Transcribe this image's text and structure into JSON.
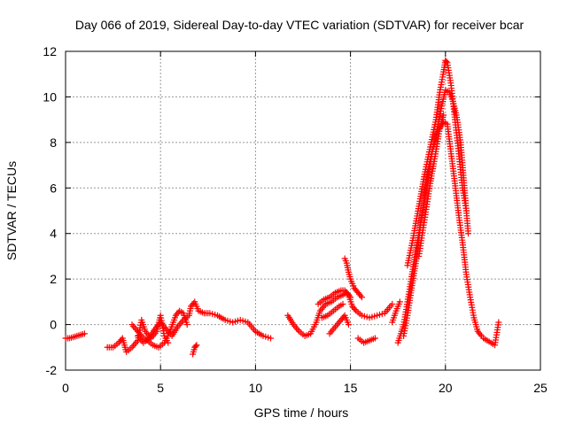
{
  "chart_data": {
    "type": "scatter",
    "title": "Day 066 of 2019, Sidereal Day-to-day VTEC variation (SDTVAR) for receiver bcar",
    "xlabel": "GPS time / hours",
    "ylabel": "SDTVAR / TECUs",
    "xlim": [
      0,
      25
    ],
    "ylim": [
      -2,
      12
    ],
    "xticks": [
      0,
      5,
      10,
      15,
      20,
      25
    ],
    "yticks": [
      -2,
      0,
      2,
      4,
      6,
      8,
      10,
      12
    ],
    "grid": true,
    "marker": "+",
    "series": [
      {
        "name": "SDTVAR",
        "color": "#ff0000",
        "points": [
          [
            0.0,
            -0.6
          ],
          [
            0.2,
            -0.6
          ],
          [
            0.4,
            -0.55
          ],
          [
            0.6,
            -0.5
          ],
          [
            0.8,
            -0.45
          ],
          [
            1.0,
            -0.4
          ],
          [
            2.2,
            -1.0
          ],
          [
            2.5,
            -1.0
          ],
          [
            2.8,
            -0.8
          ],
          [
            3.0,
            -0.6
          ],
          [
            3.2,
            -1.2
          ],
          [
            3.5,
            -1.0
          ],
          [
            3.8,
            -0.7
          ],
          [
            4.0,
            0.2
          ],
          [
            4.2,
            -0.3
          ],
          [
            4.5,
            -0.6
          ],
          [
            4.8,
            -0.3
          ],
          [
            5.0,
            0.4
          ],
          [
            5.2,
            -0.5
          ],
          [
            5.4,
            -0.8
          ],
          [
            3.5,
            0.0
          ],
          [
            3.8,
            -0.3
          ],
          [
            4.0,
            -0.5
          ],
          [
            4.3,
            -0.7
          ],
          [
            4.6,
            -0.9
          ],
          [
            4.9,
            -1.0
          ],
          [
            5.2,
            -0.8
          ],
          [
            5.5,
            -0.3
          ],
          [
            5.8,
            0.4
          ],
          [
            6.0,
            0.6
          ],
          [
            6.2,
            0.5
          ],
          [
            6.4,
            0.0
          ],
          [
            3.8,
            -0.5
          ],
          [
            4.1,
            -0.8
          ],
          [
            4.4,
            -0.6
          ],
          [
            4.7,
            -0.2
          ],
          [
            5.0,
            0.1
          ],
          [
            5.3,
            -0.2
          ],
          [
            5.6,
            -0.5
          ],
          [
            5.9,
            -0.1
          ],
          [
            6.2,
            0.2
          ],
          [
            6.5,
            0.4
          ],
          [
            6.6,
            0.8
          ],
          [
            6.8,
            1.0
          ],
          [
            7.0,
            0.6
          ],
          [
            7.3,
            0.5
          ],
          [
            7.6,
            0.5
          ],
          [
            8.0,
            0.4
          ],
          [
            8.4,
            0.2
          ],
          [
            8.8,
            0.1
          ],
          [
            9.2,
            0.2
          ],
          [
            9.6,
            0.1
          ],
          [
            10.0,
            -0.3
          ],
          [
            10.4,
            -0.5
          ],
          [
            10.8,
            -0.6
          ],
          [
            6.7,
            -1.3
          ],
          [
            6.8,
            -1.0
          ],
          [
            6.9,
            -0.9
          ],
          [
            11.7,
            0.4
          ],
          [
            12.0,
            0.0
          ],
          [
            12.3,
            -0.3
          ],
          [
            12.6,
            -0.5
          ],
          [
            12.9,
            -0.4
          ],
          [
            13.2,
            0.1
          ],
          [
            13.4,
            0.6
          ],
          [
            13.7,
            0.9
          ],
          [
            14.0,
            1.0
          ],
          [
            14.3,
            1.2
          ],
          [
            14.6,
            1.3
          ],
          [
            14.8,
            1.4
          ],
          [
            15.0,
            1.2
          ],
          [
            13.3,
            0.9
          ],
          [
            13.6,
            1.1
          ],
          [
            13.9,
            1.2
          ],
          [
            14.2,
            1.4
          ],
          [
            14.5,
            1.5
          ],
          [
            14.7,
            1.5
          ],
          [
            14.9,
            1.3
          ],
          [
            15.1,
            0.8
          ],
          [
            15.3,
            0.6
          ],
          [
            15.6,
            0.4
          ],
          [
            16.0,
            0.3
          ],
          [
            16.4,
            0.4
          ],
          [
            16.8,
            0.5
          ],
          [
            17.2,
            0.9
          ],
          [
            13.5,
            0.3
          ],
          [
            13.8,
            0.4
          ],
          [
            14.1,
            0.6
          ],
          [
            14.4,
            0.8
          ],
          [
            14.6,
            0.9
          ],
          [
            13.9,
            -0.4
          ],
          [
            14.2,
            -0.1
          ],
          [
            14.5,
            0.2
          ],
          [
            14.7,
            0.4
          ],
          [
            14.9,
            0.0
          ],
          [
            14.7,
            2.9
          ],
          [
            14.8,
            2.7
          ],
          [
            14.9,
            2.3
          ],
          [
            15.0,
            2.0
          ],
          [
            15.2,
            1.6
          ],
          [
            15.4,
            1.4
          ],
          [
            15.6,
            1.2
          ],
          [
            15.4,
            -0.6
          ],
          [
            15.7,
            -0.8
          ],
          [
            16.0,
            -0.7
          ],
          [
            16.3,
            -0.6
          ],
          [
            17.2,
            0.1
          ],
          [
            17.4,
            0.6
          ],
          [
            17.6,
            1.0
          ],
          [
            17.5,
            -0.8
          ],
          [
            17.8,
            0.0
          ],
          [
            18.0,
            1.0
          ],
          [
            18.2,
            2.0
          ],
          [
            18.5,
            3.5
          ],
          [
            18.8,
            5.0
          ],
          [
            19.0,
            6.5
          ],
          [
            19.3,
            7.6
          ],
          [
            19.6,
            8.5
          ],
          [
            19.9,
            8.9
          ],
          [
            20.1,
            8.8
          ],
          [
            20.3,
            7.5
          ],
          [
            20.5,
            6.2
          ],
          [
            20.7,
            4.8
          ],
          [
            20.9,
            3.6
          ],
          [
            21.1,
            2.2
          ],
          [
            21.3,
            1.2
          ],
          [
            21.5,
            0.3
          ],
          [
            21.7,
            -0.3
          ],
          [
            21.9,
            -0.5
          ],
          [
            17.8,
            -0.5
          ],
          [
            18.0,
            0.4
          ],
          [
            18.2,
            1.5
          ],
          [
            18.5,
            3.0
          ],
          [
            18.7,
            4.5
          ],
          [
            19.0,
            6.0
          ],
          [
            19.3,
            7.6
          ],
          [
            19.6,
            8.7
          ],
          [
            19.8,
            9.6
          ],
          [
            20.0,
            10.3
          ],
          [
            20.2,
            10.2
          ],
          [
            20.4,
            9.8
          ],
          [
            20.6,
            9.1
          ],
          [
            20.8,
            8.0
          ],
          [
            21.0,
            6.0
          ],
          [
            21.2,
            4.0
          ],
          [
            18.0,
            2.6
          ],
          [
            18.3,
            3.8
          ],
          [
            18.6,
            5.2
          ],
          [
            18.9,
            6.6
          ],
          [
            19.2,
            7.8
          ],
          [
            19.5,
            9.0
          ],
          [
            19.7,
            10.2
          ],
          [
            19.9,
            11.1
          ],
          [
            20.0,
            11.6
          ],
          [
            20.1,
            11.5
          ],
          [
            20.3,
            10.5
          ],
          [
            20.5,
            9.0
          ],
          [
            20.7,
            7.5
          ],
          [
            20.9,
            6.0
          ],
          [
            21.1,
            5.0
          ],
          [
            18.6,
            3.0
          ],
          [
            18.9,
            4.6
          ],
          [
            19.2,
            6.2
          ],
          [
            19.5,
            7.6
          ],
          [
            19.7,
            8.6
          ],
          [
            19.9,
            9.2
          ],
          [
            22.0,
            -0.6
          ],
          [
            22.2,
            -0.7
          ],
          [
            22.4,
            -0.8
          ],
          [
            22.6,
            -0.9
          ],
          [
            22.8,
            0.1
          ]
        ]
      }
    ]
  }
}
